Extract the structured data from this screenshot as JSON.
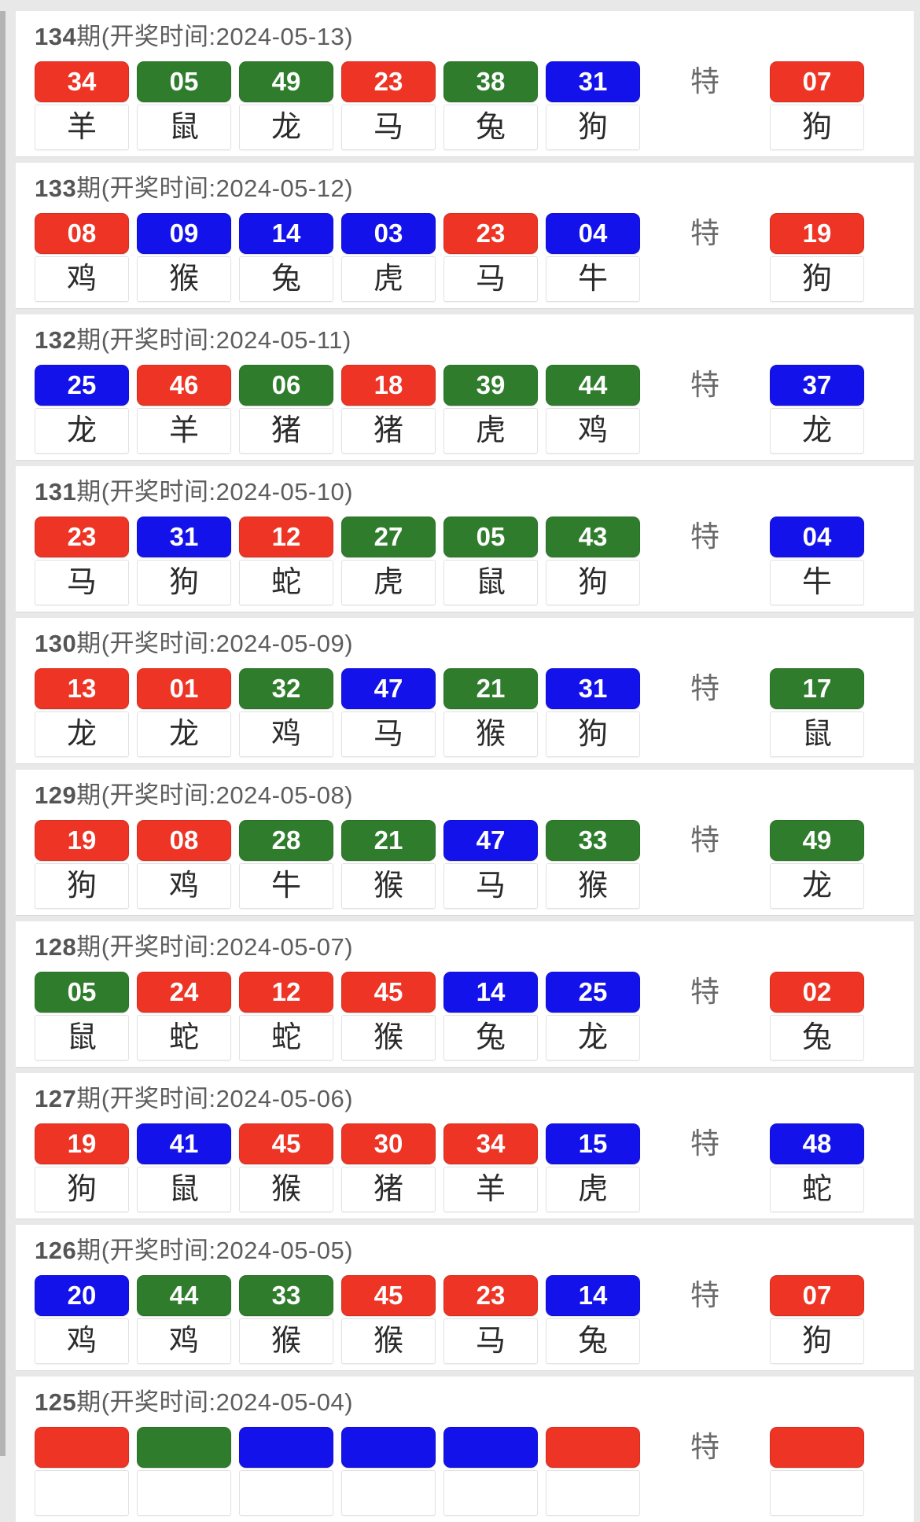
{
  "special_label": "特",
  "header_suffix_open": "期(开奖时间:",
  "header_suffix_close": ")",
  "colors": {
    "red": "#ee3424",
    "green": "#2f7d2c",
    "blue": "#1412ea"
  },
  "periods": [
    {
      "num": "134",
      "date": "2024-05-13",
      "partial": false,
      "balls": [
        {
          "n": "34",
          "c": "red",
          "z": "羊"
        },
        {
          "n": "05",
          "c": "green",
          "z": "鼠"
        },
        {
          "n": "49",
          "c": "green",
          "z": "龙"
        },
        {
          "n": "23",
          "c": "red",
          "z": "马"
        },
        {
          "n": "38",
          "c": "green",
          "z": "兔"
        },
        {
          "n": "31",
          "c": "blue",
          "z": "狗"
        }
      ],
      "special": {
        "n": "07",
        "c": "red",
        "z": "狗"
      }
    },
    {
      "num": "133",
      "date": "2024-05-12",
      "partial": false,
      "balls": [
        {
          "n": "08",
          "c": "red",
          "z": "鸡"
        },
        {
          "n": "09",
          "c": "blue",
          "z": "猴"
        },
        {
          "n": "14",
          "c": "blue",
          "z": "兔"
        },
        {
          "n": "03",
          "c": "blue",
          "z": "虎"
        },
        {
          "n": "23",
          "c": "red",
          "z": "马"
        },
        {
          "n": "04",
          "c": "blue",
          "z": "牛"
        }
      ],
      "special": {
        "n": "19",
        "c": "red",
        "z": "狗"
      }
    },
    {
      "num": "132",
      "date": "2024-05-11",
      "partial": false,
      "balls": [
        {
          "n": "25",
          "c": "blue",
          "z": "龙"
        },
        {
          "n": "46",
          "c": "red",
          "z": "羊"
        },
        {
          "n": "06",
          "c": "green",
          "z": "猪"
        },
        {
          "n": "18",
          "c": "red",
          "z": "猪"
        },
        {
          "n": "39",
          "c": "green",
          "z": "虎"
        },
        {
          "n": "44",
          "c": "green",
          "z": "鸡"
        }
      ],
      "special": {
        "n": "37",
        "c": "blue",
        "z": "龙"
      }
    },
    {
      "num": "131",
      "date": "2024-05-10",
      "partial": false,
      "balls": [
        {
          "n": "23",
          "c": "red",
          "z": "马"
        },
        {
          "n": "31",
          "c": "blue",
          "z": "狗"
        },
        {
          "n": "12",
          "c": "red",
          "z": "蛇"
        },
        {
          "n": "27",
          "c": "green",
          "z": "虎"
        },
        {
          "n": "05",
          "c": "green",
          "z": "鼠"
        },
        {
          "n": "43",
          "c": "green",
          "z": "狗"
        }
      ],
      "special": {
        "n": "04",
        "c": "blue",
        "z": "牛"
      }
    },
    {
      "num": "130",
      "date": "2024-05-09",
      "partial": false,
      "balls": [
        {
          "n": "13",
          "c": "red",
          "z": "龙"
        },
        {
          "n": "01",
          "c": "red",
          "z": "龙"
        },
        {
          "n": "32",
          "c": "green",
          "z": "鸡"
        },
        {
          "n": "47",
          "c": "blue",
          "z": "马"
        },
        {
          "n": "21",
          "c": "green",
          "z": "猴"
        },
        {
          "n": "31",
          "c": "blue",
          "z": "狗"
        }
      ],
      "special": {
        "n": "17",
        "c": "green",
        "z": "鼠"
      }
    },
    {
      "num": "129",
      "date": "2024-05-08",
      "partial": false,
      "balls": [
        {
          "n": "19",
          "c": "red",
          "z": "狗"
        },
        {
          "n": "08",
          "c": "red",
          "z": "鸡"
        },
        {
          "n": "28",
          "c": "green",
          "z": "牛"
        },
        {
          "n": "21",
          "c": "green",
          "z": "猴"
        },
        {
          "n": "47",
          "c": "blue",
          "z": "马"
        },
        {
          "n": "33",
          "c": "green",
          "z": "猴"
        }
      ],
      "special": {
        "n": "49",
        "c": "green",
        "z": "龙"
      }
    },
    {
      "num": "128",
      "date": "2024-05-07",
      "partial": false,
      "balls": [
        {
          "n": "05",
          "c": "green",
          "z": "鼠"
        },
        {
          "n": "24",
          "c": "red",
          "z": "蛇"
        },
        {
          "n": "12",
          "c": "red",
          "z": "蛇"
        },
        {
          "n": "45",
          "c": "red",
          "z": "猴"
        },
        {
          "n": "14",
          "c": "blue",
          "z": "兔"
        },
        {
          "n": "25",
          "c": "blue",
          "z": "龙"
        }
      ],
      "special": {
        "n": "02",
        "c": "red",
        "z": "兔"
      }
    },
    {
      "num": "127",
      "date": "2024-05-06",
      "partial": false,
      "balls": [
        {
          "n": "19",
          "c": "red",
          "z": "狗"
        },
        {
          "n": "41",
          "c": "blue",
          "z": "鼠"
        },
        {
          "n": "45",
          "c": "red",
          "z": "猴"
        },
        {
          "n": "30",
          "c": "red",
          "z": "猪"
        },
        {
          "n": "34",
          "c": "red",
          "z": "羊"
        },
        {
          "n": "15",
          "c": "blue",
          "z": "虎"
        }
      ],
      "special": {
        "n": "48",
        "c": "blue",
        "z": "蛇"
      }
    },
    {
      "num": "126",
      "date": "2024-05-05",
      "partial": false,
      "balls": [
        {
          "n": "20",
          "c": "blue",
          "z": "鸡"
        },
        {
          "n": "44",
          "c": "green",
          "z": "鸡"
        },
        {
          "n": "33",
          "c": "green",
          "z": "猴"
        },
        {
          "n": "45",
          "c": "red",
          "z": "猴"
        },
        {
          "n": "23",
          "c": "red",
          "z": "马"
        },
        {
          "n": "14",
          "c": "blue",
          "z": "兔"
        }
      ],
      "special": {
        "n": "07",
        "c": "red",
        "z": "狗"
      }
    },
    {
      "num": "125",
      "date": "2024-05-04",
      "partial": true,
      "balls": [
        {
          "n": "",
          "c": "red",
          "z": ""
        },
        {
          "n": "",
          "c": "green",
          "z": ""
        },
        {
          "n": "",
          "c": "blue",
          "z": ""
        },
        {
          "n": "",
          "c": "blue",
          "z": ""
        },
        {
          "n": "",
          "c": "blue",
          "z": ""
        },
        {
          "n": "",
          "c": "red",
          "z": ""
        }
      ],
      "special": {
        "n": "",
        "c": "red",
        "z": ""
      }
    }
  ]
}
